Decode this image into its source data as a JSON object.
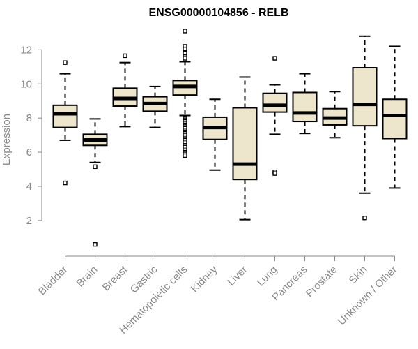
{
  "chart_data": {
    "type": "boxplot",
    "title": "ENSG00000104856 - RELB",
    "xlabel": "",
    "ylabel": "Expression",
    "yticks": [
      2,
      4,
      6,
      8,
      10,
      12
    ],
    "ylim": [
      0.4,
      13.2
    ],
    "grid": false,
    "colors": {
      "box_fill": "#ede6cc",
      "stroke": "#000000",
      "axis_text": "#8a8a8a"
    },
    "categories": [
      "Bladder",
      "Brain",
      "Breast",
      "Gastric",
      "Hematopoietic cells",
      "Kidney",
      "Liver",
      "Lung",
      "Pancreas",
      "Prostate",
      "Skin",
      "Unknown / Other"
    ],
    "boxes": [
      {
        "name": "Bladder",
        "whisker_low": 6.7,
        "q1": 7.45,
        "median": 8.25,
        "q3": 8.75,
        "whisker_high": 10.6,
        "outliers": [
          4.2,
          11.25
        ]
      },
      {
        "name": "Brain",
        "whisker_low": 5.4,
        "q1": 6.4,
        "median": 6.72,
        "q3": 7.05,
        "whisker_high": 7.95,
        "outliers": [
          5.15,
          0.6
        ]
      },
      {
        "name": "Breast",
        "whisker_low": 7.5,
        "q1": 8.7,
        "median": 9.15,
        "q3": 9.75,
        "whisker_high": 11.25,
        "outliers": [
          11.65
        ]
      },
      {
        "name": "Gastric",
        "whisker_low": 7.45,
        "q1": 8.4,
        "median": 8.85,
        "q3": 9.25,
        "whisker_high": 9.85,
        "outliers": []
      },
      {
        "name": "Hematopoietic cells",
        "whisker_low": 8.15,
        "q1": 9.35,
        "median": 9.85,
        "q3": 10.2,
        "whisker_high": 11.3,
        "outliers": [
          13.1,
          12.2,
          12.05,
          11.8,
          11.6,
          11.5,
          8.0,
          7.9,
          7.8,
          7.7,
          7.6,
          7.5,
          7.4,
          7.3,
          7.2,
          7.1,
          7.0,
          6.9,
          6.8,
          6.7,
          6.6,
          6.5,
          6.4,
          6.3,
          6.2,
          6.1,
          6.0,
          5.9,
          5.8
        ]
      },
      {
        "name": "Kidney",
        "whisker_low": 4.95,
        "q1": 6.75,
        "median": 7.45,
        "q3": 8.05,
        "whisker_high": 9.1,
        "outliers": []
      },
      {
        "name": "Liver",
        "whisker_low": 2.05,
        "q1": 4.4,
        "median": 5.3,
        "q3": 8.6,
        "whisker_high": 10.4,
        "outliers": []
      },
      {
        "name": "Lung",
        "whisker_low": 7.05,
        "q1": 8.35,
        "median": 8.75,
        "q3": 9.45,
        "whisker_high": 9.95,
        "outliers": [
          11.5,
          4.85,
          4.75
        ]
      },
      {
        "name": "Pancreas",
        "whisker_low": 7.1,
        "q1": 7.8,
        "median": 8.3,
        "q3": 9.5,
        "whisker_high": 10.6,
        "outliers": []
      },
      {
        "name": "Prostate",
        "whisker_low": 6.85,
        "q1": 7.6,
        "median": 8.0,
        "q3": 8.55,
        "whisker_high": 9.55,
        "outliers": []
      },
      {
        "name": "Skin",
        "whisker_low": 3.6,
        "q1": 7.55,
        "median": 8.8,
        "q3": 10.95,
        "whisker_high": 12.8,
        "outliers": [
          2.15
        ]
      },
      {
        "name": "Unknown / Other",
        "whisker_low": 3.9,
        "q1": 6.8,
        "median": 8.15,
        "q3": 9.1,
        "whisker_high": 12.2,
        "outliers": []
      }
    ]
  }
}
